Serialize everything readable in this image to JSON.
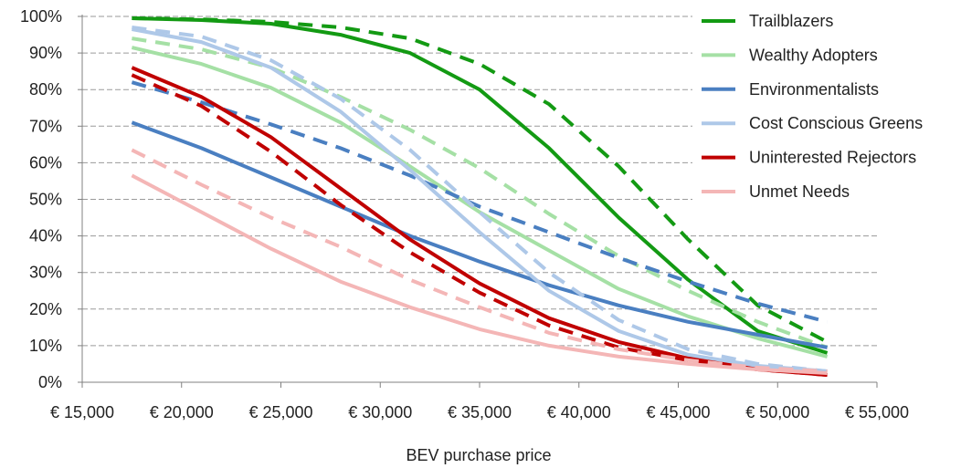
{
  "chart_data": {
    "type": "line",
    "title": "",
    "xlabel": "BEV purchase price",
    "ylabel": "",
    "xlim": [
      15000,
      55000
    ],
    "ylim": [
      0,
      100
    ],
    "grid": true,
    "legend_position": "top-right",
    "x_tick_labels": [
      "€ 15,000",
      "€ 20,000",
      "€ 25,000",
      "€ 30,000",
      "€ 35,000",
      "€ 40,000",
      "€ 45,000",
      "€ 50,000",
      "€ 55,000"
    ],
    "x_ticks": [
      15000,
      20000,
      25000,
      30000,
      35000,
      40000,
      45000,
      50000,
      55000
    ],
    "y_tick_labels": [
      "0%",
      "10%",
      "20%",
      "30%",
      "40%",
      "50%",
      "60%",
      "70%",
      "80%",
      "90%",
      "100%"
    ],
    "y_ticks": [
      0,
      10,
      20,
      30,
      40,
      50,
      60,
      70,
      80,
      90,
      100
    ],
    "x": [
      17500,
      21000,
      24500,
      28000,
      31500,
      35000,
      38500,
      42000,
      45500,
      49000,
      52500
    ],
    "series": [
      {
        "name": "Trailblazers",
        "legend": true,
        "color": "#139a13",
        "dashed": false,
        "values": [
          99.5,
          99,
          98,
          95,
          90,
          80,
          64,
          45,
          28,
          14,
          8
        ]
      },
      {
        "name": "Trailblazers",
        "legend": false,
        "color": "#139a13",
        "dashed": true,
        "values": [
          99.5,
          99.2,
          98.5,
          97,
          94,
          87,
          76,
          59,
          39,
          21,
          11
        ]
      },
      {
        "name": "Wealthy Adopters",
        "legend": true,
        "color": "#a5e0a5",
        "dashed": false,
        "values": [
          91.5,
          87,
          80.5,
          71,
          59,
          46.5,
          36,
          25.5,
          18,
          12,
          7
        ]
      },
      {
        "name": "Wealthy Adopters",
        "legend": false,
        "color": "#a5e0a5",
        "dashed": true,
        "values": [
          94,
          91,
          86,
          78,
          69,
          58.5,
          46,
          34.5,
          25,
          16.5,
          9.5
        ]
      },
      {
        "name": "Environmentalists",
        "legend": true,
        "color": "#4a7fc1",
        "dashed": false,
        "values": [
          71,
          64,
          56,
          48,
          40,
          33,
          26.5,
          21,
          16.5,
          13,
          9.5
        ]
      },
      {
        "name": "Environmentalists",
        "legend": false,
        "color": "#4a7fc1",
        "dashed": true,
        "values": [
          82,
          76.5,
          70.5,
          64,
          56.5,
          48,
          41,
          34,
          27.5,
          21.5,
          16.5
        ]
      },
      {
        "name": "Cost Conscious Greens",
        "legend": true,
        "color": "#aec8e8",
        "dashed": false,
        "values": [
          96.5,
          93,
          86,
          74,
          58,
          41,
          25,
          14,
          7.5,
          4.5,
          3
        ]
      },
      {
        "name": "Cost Conscious Greens",
        "legend": false,
        "color": "#aec8e8",
        "dashed": true,
        "values": [
          97,
          94.5,
          88,
          77.5,
          63.5,
          46.5,
          30,
          17,
          9,
          5,
          3
        ]
      },
      {
        "name": "Uninterested Rejectors",
        "legend": true,
        "color": "#c00000",
        "dashed": false,
        "values": [
          86,
          78,
          67,
          53,
          39,
          27,
          17.5,
          11,
          6.5,
          3.5,
          2
        ]
      },
      {
        "name": "Uninterested Rejectors",
        "legend": false,
        "color": "#c00000",
        "dashed": true,
        "values": [
          84,
          75.5,
          63,
          48.5,
          35.5,
          24.5,
          15.5,
          9.5,
          6,
          3.5,
          2
        ]
      },
      {
        "name": "Unmet Needs",
        "legend": true,
        "color": "#f4b6b6",
        "dashed": false,
        "values": [
          56.5,
          46.5,
          36.5,
          27.5,
          20.5,
          14.5,
          10,
          7,
          5,
          3.5,
          2.5
        ]
      },
      {
        "name": "Unmet Needs",
        "legend": false,
        "color": "#f4b6b6",
        "dashed": true,
        "values": [
          63.5,
          54,
          45,
          37,
          28,
          20.5,
          13.5,
          9,
          6,
          4,
          3
        ]
      }
    ]
  }
}
